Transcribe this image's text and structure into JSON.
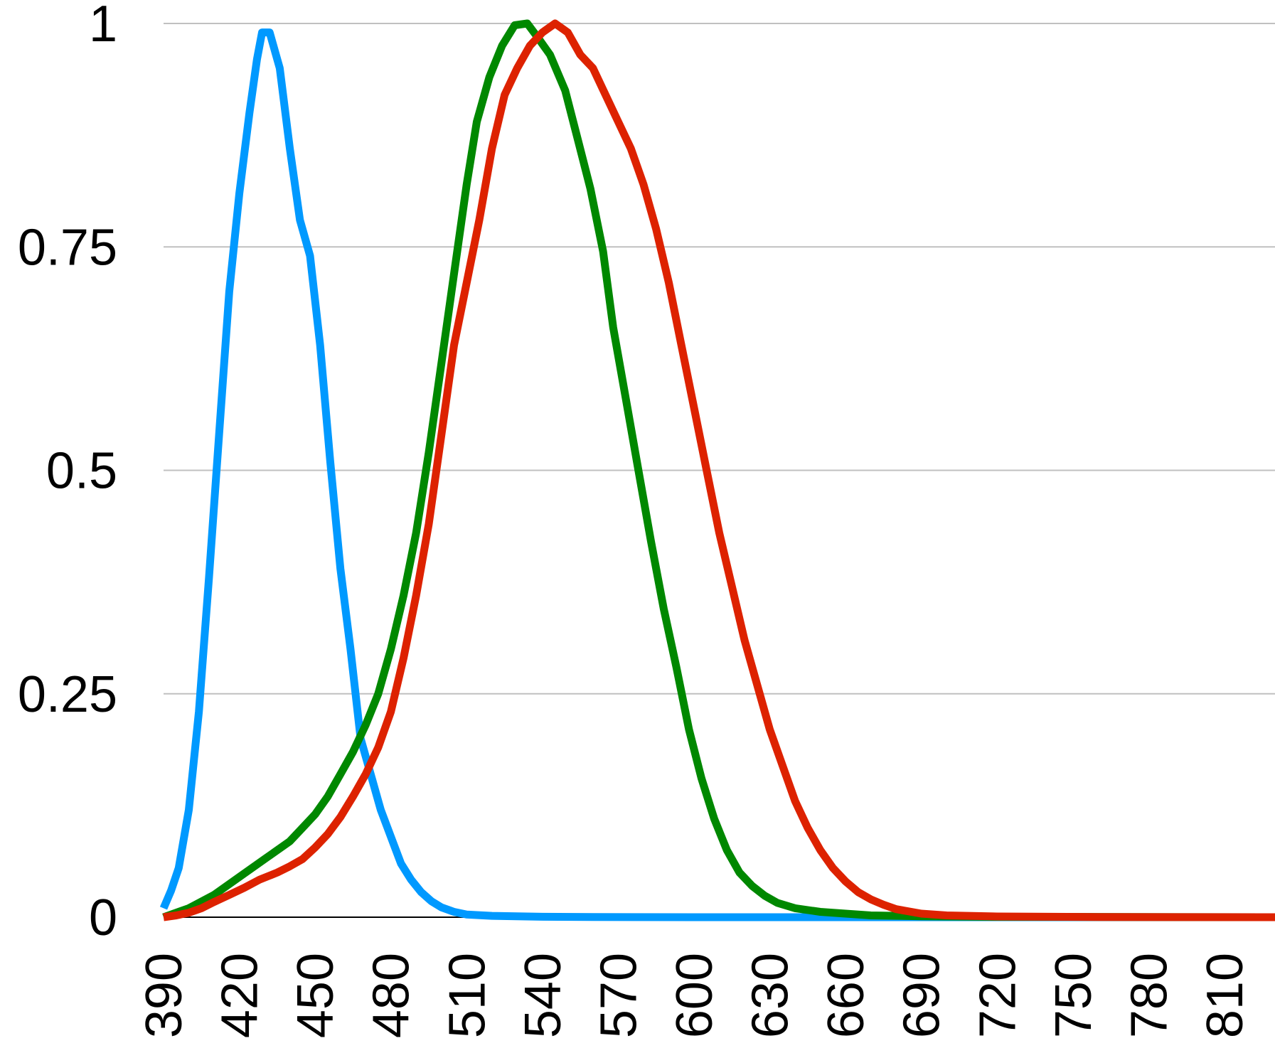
{
  "chart_data": {
    "type": "line",
    "title": "",
    "xlabel": "",
    "ylabel": "",
    "xlim": [
      390,
      830
    ],
    "ylim": [
      0,
      1
    ],
    "grid": true,
    "yticks": [
      {
        "value": 0,
        "label": "0"
      },
      {
        "value": 0.25,
        "label": "0.25"
      },
      {
        "value": 0.5,
        "label": "0.5"
      },
      {
        "value": 0.75,
        "label": "0.75"
      },
      {
        "value": 1,
        "label": "1"
      }
    ],
    "xticks": [
      {
        "value": 390,
        "label": "390"
      },
      {
        "value": 420,
        "label": "420"
      },
      {
        "value": 450,
        "label": "450"
      },
      {
        "value": 480,
        "label": "480"
      },
      {
        "value": 510,
        "label": "510"
      },
      {
        "value": 540,
        "label": "540"
      },
      {
        "value": 570,
        "label": "570"
      },
      {
        "value": 600,
        "label": "600"
      },
      {
        "value": 630,
        "label": "630"
      },
      {
        "value": 660,
        "label": "660"
      },
      {
        "value": 690,
        "label": "690"
      },
      {
        "value": 720,
        "label": "720"
      },
      {
        "value": 750,
        "label": "750"
      },
      {
        "value": 780,
        "label": "780"
      },
      {
        "value": 810,
        "label": "810"
      }
    ],
    "series": [
      {
        "color": "#0099ff",
        "points": [
          [
            390,
            0.01
          ],
          [
            393,
            0.03
          ],
          [
            396,
            0.055
          ],
          [
            400,
            0.12
          ],
          [
            404,
            0.23
          ],
          [
            408,
            0.38
          ],
          [
            412,
            0.54
          ],
          [
            416,
            0.7
          ],
          [
            420,
            0.81
          ],
          [
            424,
            0.9
          ],
          [
            427,
            0.96
          ],
          [
            429,
            0.99
          ],
          [
            432,
            0.99
          ],
          [
            436,
            0.95
          ],
          [
            440,
            0.86
          ],
          [
            444,
            0.78
          ],
          [
            448,
            0.74
          ],
          [
            452,
            0.64
          ],
          [
            456,
            0.51
          ],
          [
            460,
            0.39
          ],
          [
            464,
            0.3
          ],
          [
            468,
            0.2
          ],
          [
            472,
            0.16
          ],
          [
            476,
            0.12
          ],
          [
            480,
            0.09
          ],
          [
            484,
            0.06
          ],
          [
            488,
            0.042
          ],
          [
            492,
            0.028
          ],
          [
            496,
            0.018
          ],
          [
            500,
            0.011
          ],
          [
            505,
            0.006
          ],
          [
            510,
            0.003
          ],
          [
            520,
            0.0015
          ],
          [
            540,
            0.0005
          ],
          [
            560,
            0.0002
          ],
          [
            600,
            0
          ],
          [
            700,
            0
          ],
          [
            830,
            0
          ]
        ]
      },
      {
        "color": "#008800",
        "points": [
          [
            390,
            0
          ],
          [
            400,
            0.01
          ],
          [
            410,
            0.025
          ],
          [
            420,
            0.045
          ],
          [
            430,
            0.065
          ],
          [
            440,
            0.085
          ],
          [
            445,
            0.1
          ],
          [
            450,
            0.115
          ],
          [
            455,
            0.135
          ],
          [
            460,
            0.16
          ],
          [
            465,
            0.185
          ],
          [
            470,
            0.215
          ],
          [
            475,
            0.25
          ],
          [
            480,
            0.3
          ],
          [
            485,
            0.36
          ],
          [
            490,
            0.43
          ],
          [
            495,
            0.52
          ],
          [
            500,
            0.62
          ],
          [
            505,
            0.72
          ],
          [
            510,
            0.82
          ],
          [
            514,
            0.89
          ],
          [
            519,
            0.94
          ],
          [
            524,
            0.975
          ],
          [
            529,
            0.998
          ],
          [
            534,
            1.0
          ],
          [
            538,
            0.985
          ],
          [
            543,
            0.965
          ],
          [
            549,
            0.925
          ],
          [
            554,
            0.87
          ],
          [
            559,
            0.815
          ],
          [
            564,
            0.745
          ],
          [
            568,
            0.66
          ],
          [
            573,
            0.58
          ],
          [
            578,
            0.5
          ],
          [
            583,
            0.42
          ],
          [
            588,
            0.345
          ],
          [
            593,
            0.28
          ],
          [
            598,
            0.21
          ],
          [
            603,
            0.155
          ],
          [
            608,
            0.11
          ],
          [
            613,
            0.075
          ],
          [
            618,
            0.05
          ],
          [
            623,
            0.035
          ],
          [
            628,
            0.024
          ],
          [
            633,
            0.016
          ],
          [
            640,
            0.01
          ],
          [
            650,
            0.006
          ],
          [
            660,
            0.004
          ],
          [
            670,
            0.002
          ],
          [
            690,
            0.001
          ],
          [
            720,
            0.0004
          ],
          [
            830,
            0
          ]
        ]
      },
      {
        "color": "#dd2200",
        "points": [
          [
            390,
            0
          ],
          [
            395,
            0.002
          ],
          [
            400,
            0.005
          ],
          [
            405,
            0.01
          ],
          [
            410,
            0.017
          ],
          [
            416,
            0.025
          ],
          [
            422,
            0.033
          ],
          [
            428,
            0.042
          ],
          [
            435,
            0.05
          ],
          [
            440,
            0.057
          ],
          [
            445,
            0.065
          ],
          [
            450,
            0.078
          ],
          [
            455,
            0.093
          ],
          [
            460,
            0.112
          ],
          [
            465,
            0.135
          ],
          [
            470,
            0.16
          ],
          [
            475,
            0.19
          ],
          [
            480,
            0.23
          ],
          [
            485,
            0.29
          ],
          [
            490,
            0.36
          ],
          [
            495,
            0.44
          ],
          [
            500,
            0.54
          ],
          [
            505,
            0.64
          ],
          [
            510,
            0.71
          ],
          [
            515,
            0.78
          ],
          [
            520,
            0.86
          ],
          [
            525,
            0.92
          ],
          [
            530,
            0.95
          ],
          [
            535,
            0.975
          ],
          [
            540,
            0.99
          ],
          [
            545,
            1.0
          ],
          [
            550,
            0.99
          ],
          [
            555,
            0.965
          ],
          [
            560,
            0.95
          ],
          [
            565,
            0.92
          ],
          [
            570,
            0.89
          ],
          [
            575,
            0.86
          ],
          [
            580,
            0.82
          ],
          [
            585,
            0.77
          ],
          [
            590,
            0.71
          ],
          [
            595,
            0.64
          ],
          [
            600,
            0.57
          ],
          [
            605,
            0.5
          ],
          [
            610,
            0.43
          ],
          [
            615,
            0.37
          ],
          [
            620,
            0.31
          ],
          [
            625,
            0.26
          ],
          [
            630,
            0.21
          ],
          [
            635,
            0.17
          ],
          [
            640,
            0.13
          ],
          [
            645,
            0.1
          ],
          [
            650,
            0.075
          ],
          [
            655,
            0.055
          ],
          [
            660,
            0.04
          ],
          [
            665,
            0.028
          ],
          [
            670,
            0.02
          ],
          [
            675,
            0.014
          ],
          [
            680,
            0.009
          ],
          [
            690,
            0.004
          ],
          [
            700,
            0.002
          ],
          [
            720,
            0.0008
          ],
          [
            760,
            0.0002
          ],
          [
            830,
            0
          ]
        ]
      }
    ]
  }
}
